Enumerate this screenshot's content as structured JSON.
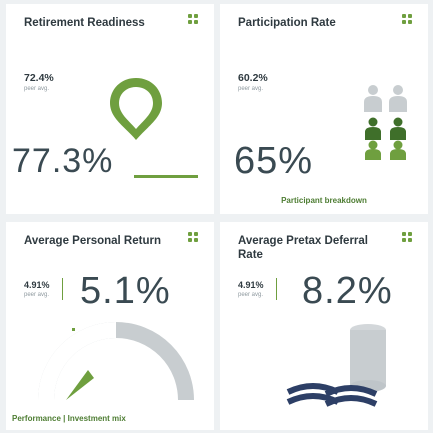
{
  "cards": {
    "retirement_readiness": {
      "title": "Retirement Readiness",
      "peer_value": "72.4%",
      "peer_label": "peer avg.",
      "main_value": "77.3%"
    },
    "participation_rate": {
      "title": "Participation Rate",
      "peer_value": "60.2%",
      "peer_label": "peer avg.",
      "main_value": "65%",
      "caption": "Participant breakdown"
    },
    "average_personal_return": {
      "title": "Average Personal Return",
      "peer_value": "4.91%",
      "peer_label": "peer avg.",
      "main_value": "5.1%",
      "caption": "Performance | Investment mix",
      "gauge_fraction": 0.55
    },
    "average_pretax_deferral": {
      "title": "Average Pretax Deferral Rate",
      "peer_value": "4.91%",
      "peer_label": "peer avg.",
      "main_value": "8.2%"
    }
  },
  "colors": {
    "accent_green": "#6f9f3f",
    "dark_green": "#4e7d33",
    "grey": "#c8cdd0",
    "text": "#2f3a40",
    "navy": "#2d3f66"
  },
  "icons": {
    "menu": "grid-menu-icon",
    "pin": "map-pin-icon",
    "people": "people-group-icon",
    "gauge": "gauge-icon",
    "coins": "coin-stack-icon"
  }
}
